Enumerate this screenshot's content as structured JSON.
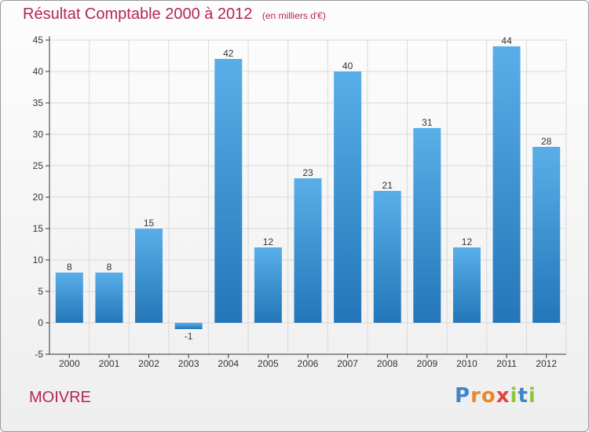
{
  "title": "Résultat Comptable 2000 à 2012",
  "subtitle": "(en milliers d'€)",
  "commune": "MOIVRE",
  "logo": [
    "P",
    "ro",
    "x",
    "i",
    "t",
    "i"
  ],
  "colors": {
    "title": "#b5245e",
    "bar_light": "#5aaee8",
    "bar_dark": "#2476b8",
    "grid": "#d9d9d9",
    "axis": "#333333"
  },
  "chart_data": {
    "type": "bar",
    "categories": [
      "2000",
      "2001",
      "2002",
      "2003",
      "2004",
      "2005",
      "2006",
      "2007",
      "2008",
      "2009",
      "2010",
      "2011",
      "2012"
    ],
    "values": [
      8,
      8,
      15,
      -1,
      42,
      12,
      23,
      40,
      21,
      31,
      12,
      44,
      28
    ],
    "labels": [
      "8",
      "8",
      "15",
      "-1",
      "42",
      "12",
      "23",
      "40",
      "21",
      "31",
      "12",
      "44",
      "28"
    ],
    "yticks": [
      -5,
      0,
      5,
      10,
      15,
      20,
      25,
      30,
      35,
      40,
      45
    ],
    "ylim": [
      -5,
      45
    ],
    "grid": true,
    "xlabel": "",
    "ylabel": ""
  }
}
